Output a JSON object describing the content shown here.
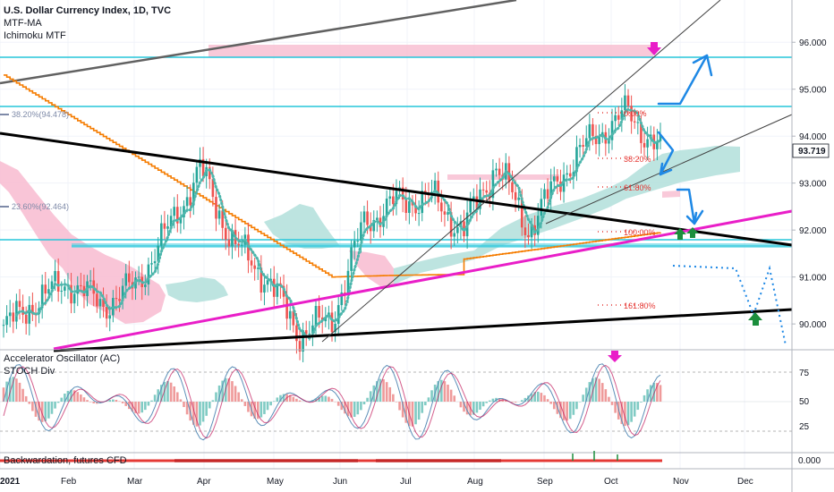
{
  "header": {
    "title": "U.S. Dollar Currency Index, 1D, TVC",
    "indicator1": "MTF-MA",
    "indicator2": "Ichimoku MTF"
  },
  "price_axis": {
    "ticks": [
      "96.000",
      "95.000",
      "94.000",
      "93.000",
      "92.000",
      "91.000",
      "90.000"
    ],
    "last_price": "93.719"
  },
  "fib_left": [
    "38.20%(94.478)",
    "23.60%(92.464)"
  ],
  "fib_levels": [
    "0.00%",
    "38.20%",
    "61.80%",
    "100.00%",
    "161.80%"
  ],
  "oscillator": {
    "name1": "Accelerator Oscillator (AC)",
    "name2": "STOCH Div",
    "ticks": [
      "75",
      "50",
      "25"
    ]
  },
  "bottom_pane": {
    "name": "Backwardation, futures CFD",
    "value": "0.000"
  },
  "time_axis": {
    "labels": [
      "2021",
      "Feb",
      "Mar",
      "Apr",
      "May",
      "Jun",
      "Jul",
      "Aug",
      "Sep",
      "Oct",
      "Nov",
      "Dec"
    ]
  },
  "colors": {
    "up": "#26a69a",
    "down": "#ef5350",
    "ma": "#f57c00",
    "trend": "#000000",
    "pink_line": "#e91ec8",
    "cyan_line": "#26c6da",
    "projection": "#1e88e5",
    "cloud_green": "#b2dfdb",
    "cloud_red": "#f8bbd0"
  },
  "chart_data": {
    "type": "candlestick",
    "symbol": "U.S. Dollar Currency Index",
    "timeframe": "1D",
    "x_range": [
      "2021-01-04",
      "2021-12-31"
    ],
    "ylim": [
      89.45,
      96.9
    ],
    "series": [
      {
        "name": "price",
        "x": [
          "2021-01-04",
          "2021-01-15",
          "2021-02-01",
          "2021-02-15",
          "2021-02-26",
          "2021-03-10",
          "2021-03-31",
          "2021-04-15",
          "2021-05-03",
          "2021-05-25",
          "2021-06-08",
          "2021-06-18",
          "2021-07-01",
          "2021-07-15",
          "2021-08-02",
          "2021-08-20",
          "2021-09-03",
          "2021-09-20",
          "2021-10-01",
          "2021-10-12",
          "2021-10-20"
        ],
        "values": [
          89.9,
          90.5,
          90.9,
          90.4,
          90.8,
          92.0,
          93.3,
          91.7,
          91.0,
          89.8,
          90.1,
          92.2,
          92.6,
          92.7,
          92.0,
          93.4,
          92.0,
          93.2,
          94.0,
          94.5,
          93.7
        ]
      }
    ],
    "oscillator_range": [
      0,
      100
    ]
  }
}
